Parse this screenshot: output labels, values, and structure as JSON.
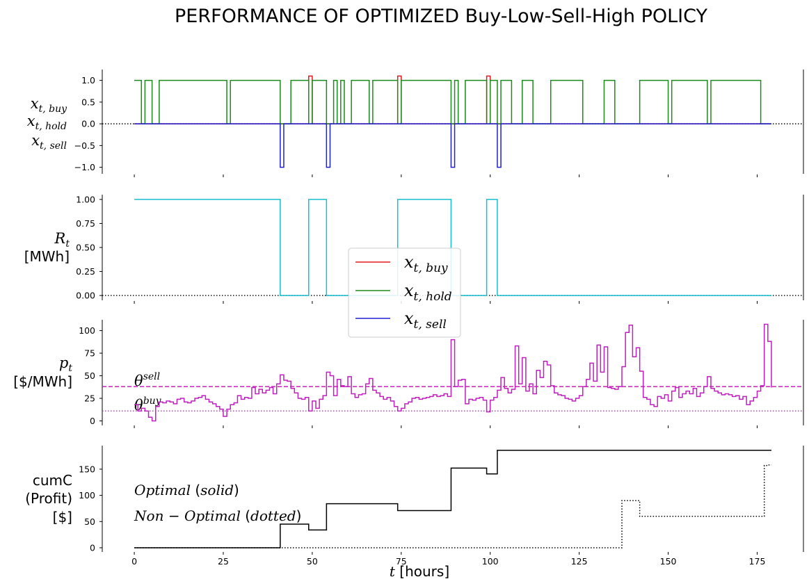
{
  "chart_data": {
    "type": "line",
    "title": "PERFORMANCE OF OPTIMIZED Buy-Low-Sell-High POLICY",
    "xlabel": "t [hours]",
    "xlim": [
      -9,
      188
    ],
    "xticks": [
      0,
      25,
      50,
      75,
      100,
      125,
      150,
      175
    ],
    "panels": [
      {
        "id": "decisions",
        "ylabel_lines": [
          {
            "base": "x",
            "sub": "t, buy"
          },
          {
            "base": "x",
            "sub": "t, hold"
          },
          {
            "base": "x",
            "sub": "t, sell"
          }
        ],
        "ylim": [
          -1.15,
          1.25
        ],
        "yticks": [
          1.0,
          0.5,
          0.0,
          -0.5,
          -1.0
        ],
        "ytick_labels": [
          "1.0",
          "0.5",
          "0.0",
          "−0.5",
          "−1.0"
        ],
        "zero_line": true,
        "series": [
          {
            "name": "x_{t, buy}",
            "color": "#e41a1c",
            "step": true,
            "x": [
              0,
              49,
              50,
              74,
              75,
              99,
              100,
              179
            ],
            "values": [
              0,
              1.1,
              0,
              1.1,
              0,
              1.1,
              0,
              0
            ]
          },
          {
            "name": "x_{t, hold}",
            "color": "#1a8a1a",
            "step": true,
            "x": [
              0,
              2,
              3,
              5,
              7,
              26,
              27,
              41,
              44,
              49,
              50,
              54,
              56,
              57,
              58,
              59,
              61,
              66,
              67,
              74,
              75,
              89,
              90,
              91,
              93,
              99,
              100,
              102,
              103,
              106,
              109,
              112,
              117,
              126,
              132,
              135,
              142,
              150,
              151,
              161,
              162,
              176,
              179
            ],
            "values": [
              1,
              0,
              1,
              0,
              1,
              0,
              1,
              0,
              1,
              0,
              1,
              0,
              1,
              0,
              1,
              0,
              1,
              0,
              1,
              0,
              1,
              0,
              1,
              0,
              1,
              0,
              1,
              0,
              1,
              0,
              1,
              0,
              1,
              0,
              1,
              0,
              1,
              0,
              1,
              0,
              1,
              0,
              0
            ]
          },
          {
            "name": "x_{t, sell}",
            "color": "#1f1fd6",
            "step": true,
            "x": [
              0,
              41,
              42,
              54,
              55,
              89,
              90,
              102,
              103,
              179
            ],
            "values": [
              0,
              -1,
              0,
              -1,
              0,
              -1,
              0,
              -1,
              0,
              0
            ]
          }
        ]
      },
      {
        "id": "resource",
        "ylabel_lines": [
          {
            "base": "R",
            "sub": "t"
          },
          {
            "text": "[MWh]"
          }
        ],
        "ylim": [
          -0.05,
          1.05
        ],
        "yticks": [
          1.0,
          0.75,
          0.5,
          0.25,
          0.0
        ],
        "ytick_labels": [
          "1.00",
          "0.75",
          "0.50",
          "0.25",
          "0.00"
        ],
        "zero_line": true,
        "series": [
          {
            "name": "R_t",
            "color": "#17becf",
            "step": true,
            "x": [
              0,
              41,
              49,
              54,
              74,
              89,
              99,
              102,
              179
            ],
            "values": [
              1,
              0,
              1,
              0,
              1,
              0,
              1,
              0,
              0
            ]
          }
        ]
      },
      {
        "id": "price",
        "ylabel_lines": [
          {
            "base": "p",
            "sub": "t"
          },
          {
            "text": "[$/MWh]"
          }
        ],
        "ylim": [
          -5,
          112
        ],
        "yticks": [
          100,
          75,
          50,
          25,
          0
        ],
        "ytick_labels": [
          "100",
          "75",
          "50",
          "25",
          "0"
        ],
        "thresholds": [
          {
            "label_base": "θ",
            "label_sup": "sell",
            "value": 38,
            "color": "#cc1fb7",
            "style": "dashed"
          },
          {
            "label_base": "θ",
            "label_sup": "buy",
            "value": 11,
            "color": "#b81fd1",
            "style": "dotted"
          }
        ],
        "series": [
          {
            "name": "p_t",
            "color": "#bf1fbf",
            "step": true,
            "x": [
              0,
              1,
              2,
              3,
              4,
              5,
              6,
              7,
              8,
              9,
              10,
              11,
              12,
              13,
              14,
              15,
              16,
              17,
              18,
              19,
              20,
              21,
              22,
              23,
              24,
              25,
              26,
              27,
              28,
              29,
              30,
              31,
              32,
              33,
              34,
              35,
              36,
              37,
              38,
              39,
              40,
              41,
              42,
              43,
              44,
              45,
              46,
              47,
              48,
              49,
              50,
              51,
              52,
              53,
              54,
              55,
              56,
              57,
              58,
              59,
              60,
              61,
              62,
              63,
              64,
              65,
              66,
              67,
              68,
              69,
              70,
              71,
              72,
              73,
              74,
              75,
              76,
              77,
              78,
              79,
              80,
              81,
              82,
              83,
              84,
              85,
              86,
              87,
              88,
              89,
              90,
              91,
              92,
              93,
              94,
              95,
              96,
              97,
              98,
              99,
              100,
              101,
              102,
              103,
              104,
              105,
              106,
              107,
              108,
              109,
              110,
              111,
              112,
              113,
              114,
              115,
              116,
              117,
              118,
              119,
              120,
              121,
              122,
              123,
              124,
              125,
              126,
              127,
              128,
              129,
              130,
              131,
              132,
              133,
              134,
              135,
              136,
              137,
              138,
              139,
              140,
              141,
              142,
              143,
              144,
              145,
              146,
              147,
              148,
              149,
              150,
              151,
              152,
              153,
              154,
              155,
              156,
              157,
              158,
              159,
              160,
              161,
              162,
              163,
              164,
              165,
              166,
              167,
              168,
              169,
              170,
              171,
              172,
              173,
              174,
              175,
              176,
              177,
              178,
              179
            ],
            "values": [
              18,
              11,
              14,
              11,
              4,
              0,
              16,
              21,
              20,
              22,
              21,
              19,
              24,
              25,
              21,
              20,
              22,
              25,
              26,
              28,
              24,
              21,
              19,
              16,
              13,
              5,
              13,
              18,
              20,
              28,
              24,
              26,
              25,
              37,
              30,
              35,
              31,
              34,
              37,
              30,
              41,
              51,
              45,
              44,
              36,
              31,
              25,
              24,
              26,
              11,
              22,
              14,
              24,
              28,
              54,
              50,
              28,
              46,
              39,
              38,
              49,
              30,
              26,
              29,
              30,
              41,
              47,
              34,
              31,
              27,
              24,
              26,
              22,
              16,
              11,
              14,
              19,
              21,
              25,
              26,
              24,
              25,
              26,
              27,
              29,
              27,
              28,
              30,
              27,
              90,
              38,
              45,
              46,
              19,
              24,
              23,
              25,
              26,
              23,
              10,
              23,
              26,
              34,
              48,
              36,
              31,
              35,
              83,
              41,
              70,
              33,
              41,
              30,
              56,
              48,
              66,
              62,
              39,
              31,
              29,
              28,
              25,
              24,
              22,
              25,
              28,
              38,
              46,
              64,
              44,
              84,
              54,
              82,
              37,
              36,
              35,
              38,
              60,
              98,
              106,
              71,
              81,
              55,
              26,
              24,
              18,
              16,
              27,
              25,
              29,
              22,
              33,
              37,
              26,
              30,
              33,
              30,
              36,
              27,
              31,
              38,
              49,
              36,
              33,
              31,
              29,
              30,
              29,
              27,
              28,
              24,
              27,
              18,
              22,
              26,
              33,
              39,
              107,
              88,
              37
            ]
          }
        ]
      },
      {
        "id": "profit",
        "ylabel_lines": [
          {
            "text": "cumC"
          },
          {
            "text": "(Profit)"
          },
          {
            "text": "[$]"
          }
        ],
        "ylim": [
          -8,
          195
        ],
        "yticks": [
          150,
          100,
          50,
          0
        ],
        "ytick_labels": [
          "150",
          "100",
          "50",
          "0"
        ],
        "annotations": [
          {
            "italic": "Optimal",
            "plain": " (",
            "italic2": "solid",
            "plain2": ")"
          },
          {
            "italic": "Non − Optimal",
            "plain": " (",
            "italic2": "dotted",
            "plain2": ")"
          }
        ],
        "series": [
          {
            "name": "Optimal",
            "color": "#000000",
            "style": "solid",
            "step": true,
            "x": [
              0,
              41,
              49,
              54,
              74,
              89,
              99,
              102,
              179
            ],
            "values": [
              0,
              45,
              34,
              84,
              71,
              152,
              141,
              186,
              186
            ]
          },
          {
            "name": "Non-Optimal",
            "color": "#000000",
            "style": "dotted",
            "step": true,
            "x": [
              0,
              137,
              142,
              177,
              178,
              179
            ],
            "values": [
              0,
              90,
              60,
              157,
              158,
              158
            ]
          }
        ]
      }
    ],
    "legend": {
      "placement": "center",
      "entries": [
        {
          "base": "x",
          "sub": "t, buy",
          "color": "#e41a1c"
        },
        {
          "base": "x",
          "sub": "t, hold",
          "color": "#1a8a1a"
        },
        {
          "base": "x",
          "sub": "t, sell",
          "color": "#1f1fd6"
        }
      ]
    }
  }
}
